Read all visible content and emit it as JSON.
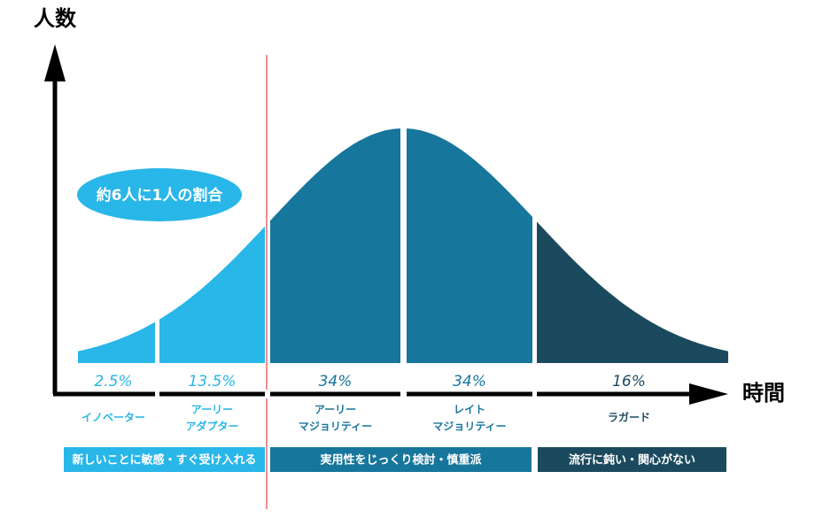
{
  "axes": {
    "y_label": "人数",
    "x_label": "時間"
  },
  "callout": "約6人に1人の割合",
  "segments": [
    {
      "percent": "2.5%",
      "name": [
        "イノベーター"
      ],
      "color": "#29b6e8"
    },
    {
      "percent": "13.5%",
      "name": [
        "アーリー",
        "アダプター"
      ],
      "color": "#29b6e8"
    },
    {
      "percent": "34%",
      "name": [
        "アーリー",
        "マジョリティー"
      ],
      "color": "#17769c"
    },
    {
      "percent": "34%",
      "name": [
        "レイト",
        "マジョリティー"
      ],
      "color": "#17769c"
    },
    {
      "percent": "16%",
      "name": [
        "ラガード"
      ],
      "color": "#1b4a5e"
    }
  ],
  "groups": [
    {
      "text": "新しいことに敏感・すぐ受け入れる",
      "color": "#29b6e8"
    },
    {
      "text": "実用性をじっくり検討・慎重派",
      "color": "#17769c"
    },
    {
      "text": "流行に鈍い・関心がない",
      "color": "#1b4a5e"
    }
  ]
}
